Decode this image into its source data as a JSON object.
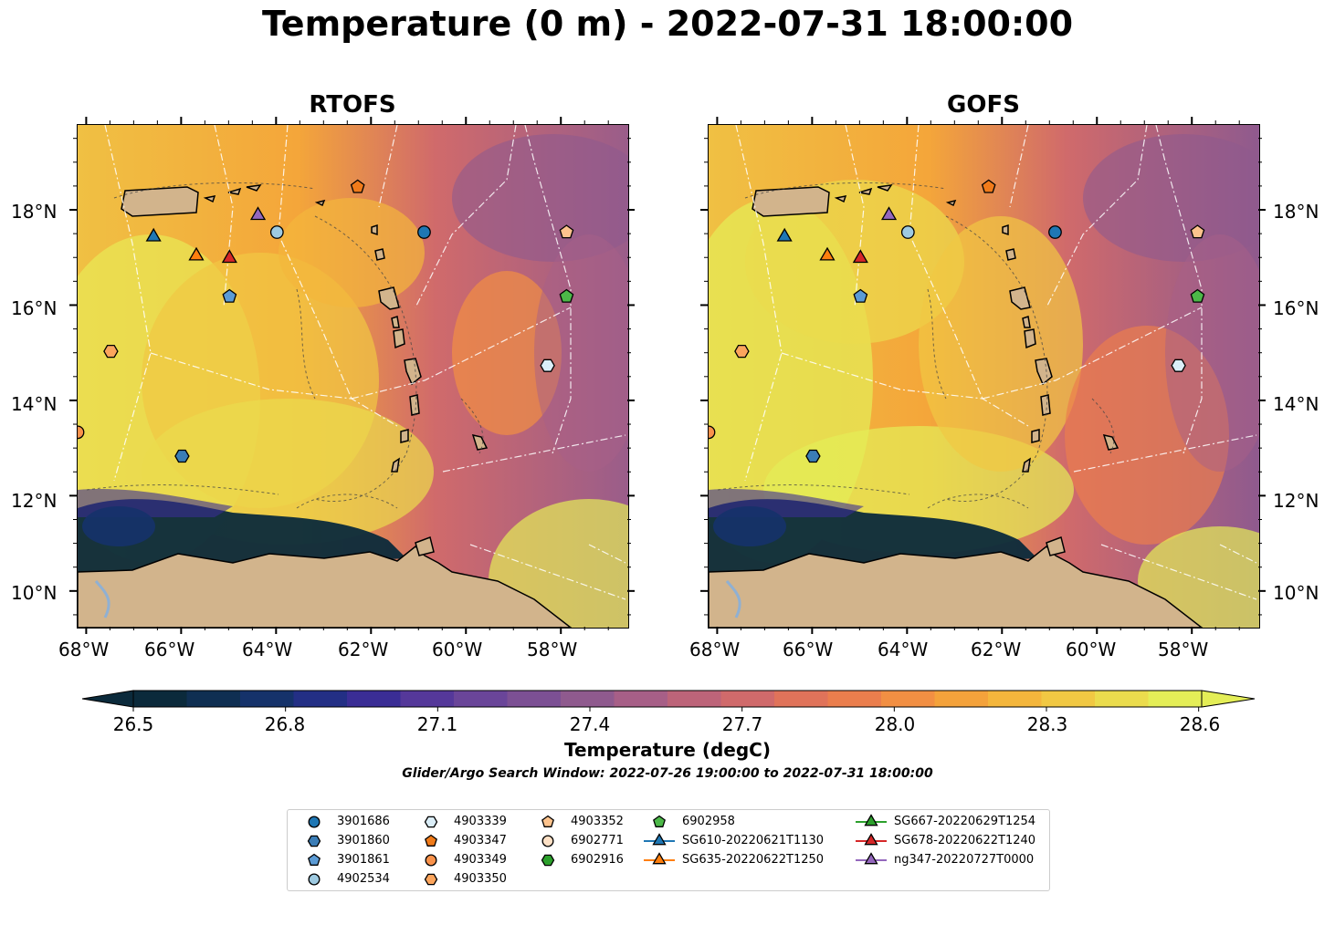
{
  "title": "Temperature (0 m) - 2022-07-31 18:00:00",
  "panels": [
    {
      "title": "RTOFS"
    },
    {
      "title": "GOFS"
    }
  ],
  "axes": {
    "lon_ticks": [
      "68°W",
      "66°W",
      "64°W",
      "62°W",
      "60°W",
      "58°W"
    ],
    "lat_ticks": [
      "18°N",
      "16°N",
      "14°N",
      "12°N",
      "10°N"
    ]
  },
  "colorbar": {
    "tick_labels": [
      "26.5",
      "26.8",
      "27.1",
      "27.4",
      "27.7",
      "28.0",
      "28.3",
      "28.6"
    ],
    "label": "Temperature (degC)",
    "colors": [
      "#0b2a3b",
      "#0f2f52",
      "#15326a",
      "#232f85",
      "#3a2d95",
      "#55389a",
      "#6a4599",
      "#7c5094",
      "#8f5a8e",
      "#a75f87",
      "#bd6479",
      "#d06a6b",
      "#e0735a",
      "#eb7e4d",
      "#f28f43",
      "#f4a23b",
      "#f4b63c",
      "#f1c843",
      "#ebdc4d",
      "#e4ee57"
    ]
  },
  "subtitle": "Glider/Argo Search Window: 2022-07-26 19:00:00 to 2022-07-31 18:00:00",
  "legend": [
    {
      "label": "3901686",
      "marker": "circle",
      "color": "#1f77b4"
    },
    {
      "label": "3901860",
      "marker": "hexagon",
      "color": "#3b7db6"
    },
    {
      "label": "3901861",
      "marker": "pentagon",
      "color": "#5b9bd5"
    },
    {
      "label": "4902534",
      "marker": "circle",
      "color": "#9ecae1"
    },
    {
      "label": "4903339",
      "marker": "hexagon",
      "color": "#dbeef8"
    },
    {
      "label": "4903347",
      "marker": "pentagon",
      "color": "#f07b1a"
    },
    {
      "label": "4903349",
      "marker": "circle",
      "color": "#f9924b"
    },
    {
      "label": "4903350",
      "marker": "hexagon",
      "color": "#fca55d"
    },
    {
      "label": "4903352",
      "marker": "pentagon",
      "color": "#fdc38d"
    },
    {
      "label": "6902771",
      "marker": "circle",
      "color": "#fde0c5"
    },
    {
      "label": "6902916",
      "marker": "hexagon",
      "color": "#2ca02c"
    },
    {
      "label": "6902958",
      "marker": "pentagon",
      "color": "#4cb848"
    },
    {
      "label": "SG610-20220621T1130",
      "marker": "triangle",
      "color": "#1f77b4"
    },
    {
      "label": "SG635-20220622T1250",
      "marker": "triangle",
      "color": "#ff7f0e"
    },
    {
      "label": "SG667-20220629T1254",
      "marker": "triangle",
      "color": "#2ca02c"
    },
    {
      "label": "SG678-20220622T1240",
      "marker": "triangle",
      "color": "#d62728"
    },
    {
      "label": "ng347-20220727T0000",
      "marker": "triangle",
      "color": "#9467bd"
    }
  ],
  "markers": [
    {
      "lon": -60.9,
      "lat": 17.55,
      "marker": "circle",
      "color": "#1f77b4"
    },
    {
      "lon": -66.0,
      "lat": 12.85,
      "marker": "hexagon",
      "color": "#3b7db6"
    },
    {
      "lon": -65.0,
      "lat": 16.2,
      "marker": "pentagon",
      "color": "#5b9bd5"
    },
    {
      "lon": -64.0,
      "lat": 17.55,
      "marker": "circle",
      "color": "#9ecae1"
    },
    {
      "lon": -58.3,
      "lat": 14.75,
      "marker": "hexagon",
      "color": "#dbeef8"
    },
    {
      "lon": -62.3,
      "lat": 18.5,
      "marker": "pentagon",
      "color": "#f07b1a"
    },
    {
      "lon": -68.2,
      "lat": 13.35,
      "marker": "circle",
      "color": "#f9924b"
    },
    {
      "lon": -67.5,
      "lat": 15.05,
      "marker": "hexagon",
      "color": "#fca55d"
    },
    {
      "lon": -57.9,
      "lat": 17.55,
      "marker": "pentagon",
      "color": "#fdc38d"
    },
    {
      "lon": -57.9,
      "lat": 16.2,
      "marker": "pentagon",
      "color": "#4cb848"
    },
    {
      "lon": -66.6,
      "lat": 17.45,
      "marker": "triangle",
      "color": "#1f77b4"
    },
    {
      "lon": -65.7,
      "lat": 17.05,
      "marker": "triangle",
      "color": "#ff7f0e"
    },
    {
      "lon": -65.0,
      "lat": 17.0,
      "marker": "triangle",
      "color": "#d62728"
    },
    {
      "lon": -64.4,
      "lat": 17.9,
      "marker": "triangle",
      "color": "#9467bd"
    }
  ]
}
